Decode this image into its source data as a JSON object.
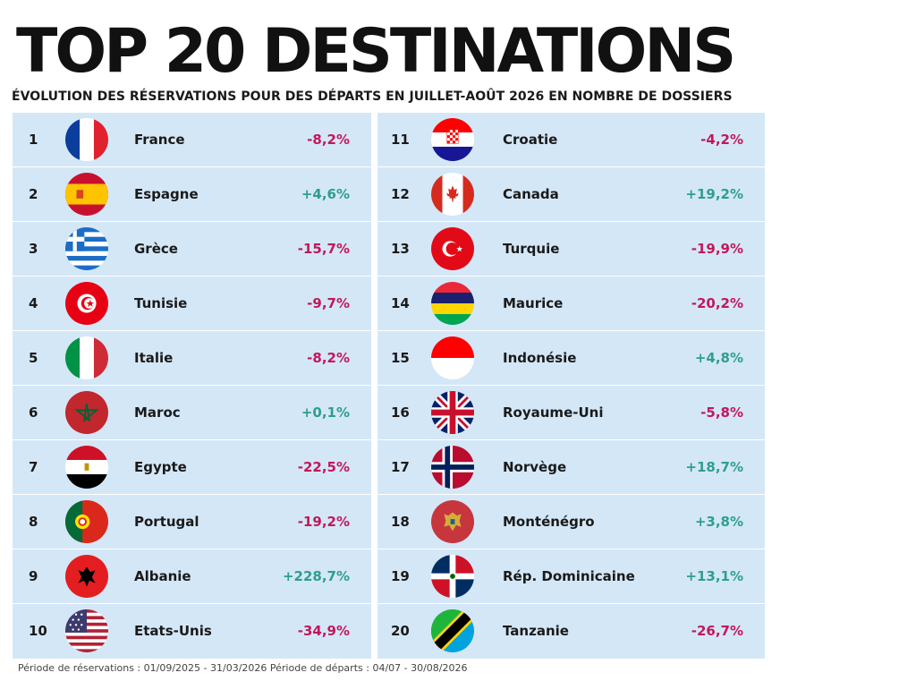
{
  "header": {
    "title": "TOP 20 DESTINATIONS",
    "subtitle": "ÉVOLUTION DES RÉSERVATIONS POUR DES DÉPARTS EN JUILLET-AOÛT 2026 EN NOMBRE DE DOSSIERS"
  },
  "colors": {
    "negative": "#c2185b",
    "positive": "#2e9e8f",
    "panel": "#d4e7f7"
  },
  "rows": [
    {
      "rank": "1",
      "country": "France",
      "change": "-8,2%",
      "trend": "negative",
      "flag": "france-flag-icon"
    },
    {
      "rank": "2",
      "country": "Espagne",
      "change": "+4,6%",
      "trend": "positive",
      "flag": "spain-flag-icon"
    },
    {
      "rank": "3",
      "country": "Grèce",
      "change": "-15,7%",
      "trend": "negative",
      "flag": "greece-flag-icon"
    },
    {
      "rank": "4",
      "country": "Tunisie",
      "change": "-9,7%",
      "trend": "negative",
      "flag": "tunisia-flag-icon"
    },
    {
      "rank": "5",
      "country": "Italie",
      "change": "-8,2%",
      "trend": "negative",
      "flag": "italy-flag-icon"
    },
    {
      "rank": "6",
      "country": "Maroc",
      "change": "+0,1%",
      "trend": "positive",
      "flag": "morocco-flag-icon"
    },
    {
      "rank": "7",
      "country": "Egypte",
      "change": "-22,5%",
      "trend": "negative",
      "flag": "egypt-flag-icon"
    },
    {
      "rank": "8",
      "country": "Portugal",
      "change": "-19,2%",
      "trend": "negative",
      "flag": "portugal-flag-icon"
    },
    {
      "rank": "9",
      "country": "Albanie",
      "change": "+228,7%",
      "trend": "positive",
      "flag": "albania-flag-icon"
    },
    {
      "rank": "10",
      "country": "Etats-Unis",
      "change": "-34,9%",
      "trend": "negative",
      "flag": "usa-flag-icon"
    },
    {
      "rank": "11",
      "country": "Croatie",
      "change": "-4,2%",
      "trend": "negative",
      "flag": "croatia-flag-icon"
    },
    {
      "rank": "12",
      "country": "Canada",
      "change": "+19,2%",
      "trend": "positive",
      "flag": "canada-flag-icon"
    },
    {
      "rank": "13",
      "country": "Turquie",
      "change": "-19,9%",
      "trend": "negative",
      "flag": "turkey-flag-icon"
    },
    {
      "rank": "14",
      "country": "Maurice",
      "change": "-20,2%",
      "trend": "negative",
      "flag": "mauritius-flag-icon"
    },
    {
      "rank": "15",
      "country": "Indonésie",
      "change": "+4,8%",
      "trend": "positive",
      "flag": "indonesia-flag-icon"
    },
    {
      "rank": "16",
      "country": "Royaume-Uni",
      "change": "-5,8%",
      "trend": "negative",
      "flag": "uk-flag-icon"
    },
    {
      "rank": "17",
      "country": "Norvège",
      "change": "+18,7%",
      "trend": "positive",
      "flag": "norway-flag-icon"
    },
    {
      "rank": "18",
      "country": "Monténégro",
      "change": "+3,8%",
      "trend": "positive",
      "flag": "montenegro-flag-icon"
    },
    {
      "rank": "19",
      "country": "Rép. Dominicaine",
      "change": "+13,1%",
      "trend": "positive",
      "flag": "dominican-republic-flag-icon"
    },
    {
      "rank": "20",
      "country": "Tanzanie",
      "change": "-26,7%",
      "trend": "negative",
      "flag": "tanzania-flag-icon"
    }
  ],
  "footnote": "Période de réservations : 01/09/2025 - 31/03/2026 Période de départs : 04/07 - 30/08/2026"
}
